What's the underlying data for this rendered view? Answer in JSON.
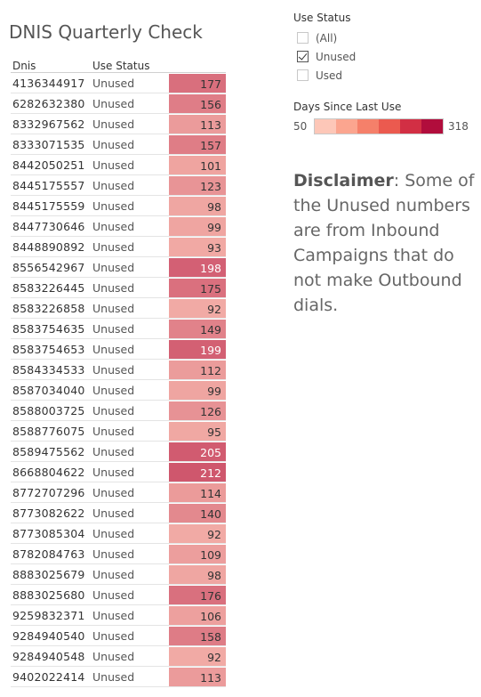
{
  "title": "DNIS Quarterly Check",
  "table": {
    "headers": {
      "dnis": "Dnis",
      "status": "Use Status",
      "days": ""
    },
    "color_scale": {
      "min": 50,
      "max": 318,
      "low_color": "#fdc7b8",
      "high_color": "#b10d3c"
    },
    "rows": [
      {
        "dnis": "4136344917",
        "status": "Unused",
        "days": "177"
      },
      {
        "dnis": "6282632380",
        "status": "Unused",
        "days": "156"
      },
      {
        "dnis": "8332967562",
        "status": "Unused",
        "days": "113"
      },
      {
        "dnis": "8333071535",
        "status": "Unused",
        "days": "157"
      },
      {
        "dnis": "8442050251",
        "status": "Unused",
        "days": "101"
      },
      {
        "dnis": "8445175557",
        "status": "Unused",
        "days": "123"
      },
      {
        "dnis": "8445175559",
        "status": "Unused",
        "days": "98"
      },
      {
        "dnis": "8447730646",
        "status": "Unused",
        "days": "99"
      },
      {
        "dnis": "8448890892",
        "status": "Unused",
        "days": "93"
      },
      {
        "dnis": "8556542967",
        "status": "Unused",
        "days": "198"
      },
      {
        "dnis": "8583226445",
        "status": "Unused",
        "days": "175"
      },
      {
        "dnis": "8583226858",
        "status": "Unused",
        "days": "92"
      },
      {
        "dnis": "8583754635",
        "status": "Unused",
        "days": "149"
      },
      {
        "dnis": "8583754653",
        "status": "Unused",
        "days": "199"
      },
      {
        "dnis": "8584334533",
        "status": "Unused",
        "days": "112"
      },
      {
        "dnis": "8587034040",
        "status": "Unused",
        "days": "99"
      },
      {
        "dnis": "8588003725",
        "status": "Unused",
        "days": "126"
      },
      {
        "dnis": "8588776075",
        "status": "Unused",
        "days": "95"
      },
      {
        "dnis": "8589475562",
        "status": "Unused",
        "days": "205"
      },
      {
        "dnis": "8668804622",
        "status": "Unused",
        "days": "212"
      },
      {
        "dnis": "8772707296",
        "status": "Unused",
        "days": "114"
      },
      {
        "dnis": "8773082622",
        "status": "Unused",
        "days": "140"
      },
      {
        "dnis": "8773085304",
        "status": "Unused",
        "days": "92"
      },
      {
        "dnis": "8782084763",
        "status": "Unused",
        "days": "109"
      },
      {
        "dnis": "8883025679",
        "status": "Unused",
        "days": "98"
      },
      {
        "dnis": "8883025680",
        "status": "Unused",
        "days": "176"
      },
      {
        "dnis": "9259832371",
        "status": "Unused",
        "days": "106"
      },
      {
        "dnis": "9284940540",
        "status": "Unused",
        "days": "158"
      },
      {
        "dnis": "9284940548",
        "status": "Unused",
        "days": "92"
      },
      {
        "dnis": "9402022414",
        "status": "Unused",
        "days": "113"
      }
    ]
  },
  "filter": {
    "title": "Use Status",
    "options": [
      {
        "label": "(All)",
        "checked": false
      },
      {
        "label": "Unused",
        "checked": true
      },
      {
        "label": "Used",
        "checked": false
      }
    ]
  },
  "legend": {
    "title": "Days Since Last Use",
    "min": "50",
    "max": "318",
    "swatches": [
      "#fdc7b8",
      "#fba58f",
      "#f5806a",
      "#eb5a4f",
      "#d22f44",
      "#b10d3c"
    ]
  },
  "disclaimer": {
    "bold": "Disclaimer",
    "text": ": Some of the Unused numbers are from Inbound Campaigns that do not make Outbound dials."
  }
}
